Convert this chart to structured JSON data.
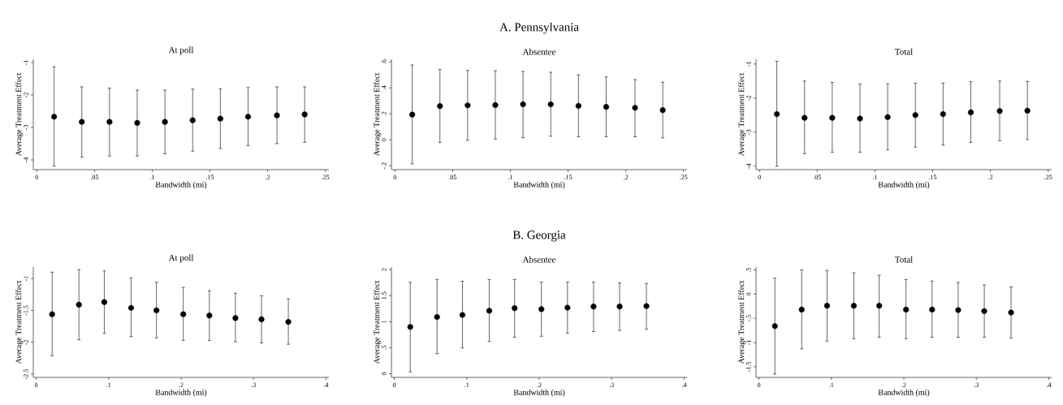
{
  "chart_data": [
    {
      "type": "scatter",
      "title": "At poll",
      "xlabel": "Bandwidth (mi)",
      "ylabel": "Average Treatment Effect",
      "color": "#000000",
      "marker": "circle",
      "x": [
        0.015,
        0.039,
        0.063,
        0.087,
        0.111,
        0.135,
        0.159,
        0.183,
        0.208,
        0.232
      ],
      "values": [
        -2.67,
        -2.83,
        -2.83,
        -2.86,
        -2.83,
        -2.78,
        -2.73,
        -2.67,
        -2.63,
        -2.6
      ],
      "errors": [
        [
          -4.19,
          -1.13
        ],
        [
          -3.92,
          -1.75
        ],
        [
          -3.88,
          -1.79
        ],
        [
          -3.88,
          -1.85
        ],
        [
          -3.81,
          -1.85
        ],
        [
          -3.73,
          -1.82
        ],
        [
          -3.65,
          -1.81
        ],
        [
          -3.56,
          -1.77
        ],
        [
          -3.5,
          -1.75
        ],
        [
          -3.46,
          -1.75
        ]
      ],
      "xlim": [
        -0.003,
        0.253
      ],
      "xticks": [
        0,
        {
          "value": 0.05,
          "label": ".05"
        },
        {
          "value": 0.1,
          "label": ".1"
        },
        {
          "value": 0.15,
          "label": ".15"
        },
        {
          "value": 0.2,
          "label": ".2"
        },
        {
          "value": 0.25,
          "label": ".25"
        }
      ],
      "ylim": [
        -4.3,
        -0.9
      ],
      "yticks": [
        -4,
        -3,
        -2,
        -1
      ]
    },
    {
      "type": "scatter",
      "title": "Absentee",
      "xlabel": "Bandwidth (mi)",
      "ylabel": "Average Treatment Effect",
      "annotations": [
        "A. Pennsylvania"
      ],
      "color": "#000000",
      "marker": "circle",
      "x": [
        0.015,
        0.039,
        0.063,
        0.087,
        0.111,
        0.135,
        0.159,
        0.183,
        0.208,
        0.232
      ],
      "values": [
        0.194,
        0.259,
        0.265,
        0.267,
        0.273,
        0.273,
        0.261,
        0.253,
        0.246,
        0.228
      ],
      "errors": [
        [
          -0.186,
          0.576
        ],
        [
          -0.021,
          0.541
        ],
        [
          -0.004,
          0.534
        ],
        [
          0.006,
          0.532
        ],
        [
          0.017,
          0.526
        ],
        [
          0.027,
          0.52
        ],
        [
          0.023,
          0.499
        ],
        [
          0.023,
          0.484
        ],
        [
          0.023,
          0.463
        ],
        [
          0.015,
          0.443
        ]
      ],
      "xlim": [
        -0.003,
        0.253
      ],
      "xticks": [
        0,
        {
          "value": 0.05,
          "label": ".05"
        },
        {
          "value": 0.1,
          "label": ".1"
        },
        {
          "value": 0.15,
          "label": ".15"
        },
        {
          "value": 0.2,
          "label": ".2"
        },
        {
          "value": 0.25,
          "label": ".25"
        }
      ],
      "ylim": [
        -0.23,
        0.62
      ],
      "yticks": [
        {
          "value": -0.2,
          "label": "-.2"
        },
        0,
        {
          "value": 0.2,
          "label": ".2"
        },
        {
          "value": 0.4,
          "label": ".4"
        },
        {
          "value": 0.6,
          "label": ".6"
        }
      ]
    },
    {
      "type": "scatter",
      "title": "Total",
      "xlabel": "Bandwidth (mi)",
      "ylabel": "Average Treatment Effect",
      "color": "#000000",
      "marker": "circle",
      "x": [
        0.015,
        0.039,
        0.063,
        0.087,
        0.111,
        0.135,
        0.159,
        0.183,
        0.208,
        0.232
      ],
      "values": [
        -2.47,
        -2.58,
        -2.58,
        -2.6,
        -2.56,
        -2.5,
        -2.47,
        -2.42,
        -2.38,
        -2.37
      ],
      "errors": [
        [
          -4.0,
          -0.92
        ],
        [
          -3.63,
          -1.5
        ],
        [
          -3.59,
          -1.54
        ],
        [
          -3.59,
          -1.59
        ],
        [
          -3.52,
          -1.58
        ],
        [
          -3.44,
          -1.56
        ],
        [
          -3.38,
          -1.56
        ],
        [
          -3.3,
          -1.52
        ],
        [
          -3.25,
          -1.5
        ],
        [
          -3.22,
          -1.51
        ]
      ],
      "xlim": [
        -0.003,
        0.253
      ],
      "xticks": [
        0,
        {
          "value": 0.05,
          "label": ".05"
        },
        {
          "value": 0.1,
          "label": ".1"
        },
        {
          "value": 0.15,
          "label": ".15"
        },
        {
          "value": 0.2,
          "label": ".2"
        },
        {
          "value": 0.25,
          "label": ".25"
        }
      ],
      "ylim": [
        -4.1,
        -0.86
      ],
      "yticks": [
        -4,
        -3,
        -2,
        -1
      ]
    },
    {
      "type": "scatter",
      "title": "At poll",
      "xlabel": "Bandwidth (mi)",
      "ylabel": "Average Treatment Effect",
      "color": "#000000",
      "marker": "circle",
      "x": [
        0.022,
        0.059,
        0.094,
        0.131,
        0.166,
        0.203,
        0.239,
        0.275,
        0.311,
        0.348
      ],
      "values": [
        -1.56,
        -1.41,
        -1.37,
        -1.46,
        -1.5,
        -1.56,
        -1.58,
        -1.62,
        -1.64,
        -1.68
      ],
      "errors": [
        [
          -2.21,
          -0.9
        ],
        [
          -1.96,
          -0.86
        ],
        [
          -1.86,
          -0.88
        ],
        [
          -1.91,
          -0.99
        ],
        [
          -1.93,
          -1.06
        ],
        [
          -1.97,
          -1.14
        ],
        [
          -1.97,
          -1.19
        ],
        [
          -1.99,
          -1.23
        ],
        [
          -2.01,
          -1.27
        ],
        [
          -2.03,
          -1.32
        ]
      ],
      "xlim": [
        -0.004,
        0.404
      ],
      "xticks": [
        0,
        {
          "value": 0.1,
          "label": ".1"
        },
        {
          "value": 0.2,
          "label": ".2"
        },
        {
          "value": 0.3,
          "label": ".3"
        },
        {
          "value": 0.4,
          "label": ".4"
        }
      ],
      "ylim": [
        -2.55,
        -0.82
      ],
      "yticks": [
        -2.5,
        -2,
        -1.5,
        -1
      ]
    },
    {
      "type": "scatter",
      "title": "Absentee",
      "xlabel": "Bandwidth (mi)",
      "ylabel": "Average Treatment Effect",
      "annotations": [
        "B. Georgia"
      ],
      "color": "#000000",
      "marker": "circle",
      "x": [
        0.022,
        0.059,
        0.094,
        0.131,
        0.166,
        0.203,
        0.239,
        0.275,
        0.311,
        0.348
      ],
      "values": [
        0.9,
        1.09,
        1.13,
        1.21,
        1.26,
        1.24,
        1.27,
        1.29,
        1.29,
        1.3
      ],
      "errors": [
        [
          0.036,
          1.755
        ],
        [
          0.385,
          1.81
        ],
        [
          0.495,
          1.776
        ],
        [
          0.62,
          1.81
        ],
        [
          0.7,
          1.81
        ],
        [
          0.72,
          1.76
        ],
        [
          0.776,
          1.76
        ],
        [
          0.81,
          1.76
        ],
        [
          0.833,
          1.745
        ],
        [
          0.854,
          1.734
        ]
      ],
      "xlim": [
        -0.004,
        0.404
      ],
      "xticks": [
        0,
        {
          "value": 0.1,
          "label": ".1"
        },
        {
          "value": 0.2,
          "label": ".2"
        },
        {
          "value": 0.3,
          "label": ".3"
        },
        {
          "value": 0.4,
          "label": ".4"
        }
      ],
      "ylim": [
        -0.07,
        2.05
      ],
      "yticks": [
        0,
        {
          "value": 0.5,
          "label": ".5"
        },
        1,
        1.5,
        2
      ]
    },
    {
      "type": "scatter",
      "title": "Total",
      "xlabel": "Bandwidth (mi)",
      "ylabel": "Average Treatment Effect",
      "color": "#000000",
      "marker": "circle",
      "x": [
        0.022,
        0.059,
        0.094,
        0.131,
        0.166,
        0.203,
        0.239,
        0.275,
        0.311,
        0.348
      ],
      "values": [
        -0.66,
        -0.32,
        -0.24,
        -0.24,
        -0.24,
        -0.32,
        -0.32,
        -0.33,
        -0.35,
        -0.38
      ],
      "errors": [
        [
          -1.65,
          0.33
        ],
        [
          -1.13,
          0.5
        ],
        [
          -0.97,
          0.49
        ],
        [
          -0.92,
          0.44
        ],
        [
          -0.89,
          0.39
        ],
        [
          -0.92,
          0.3
        ],
        [
          -0.89,
          0.27
        ],
        [
          -0.89,
          0.24
        ],
        [
          -0.89,
          0.19
        ],
        [
          -0.91,
          0.15
        ]
      ],
      "xlim": [
        -0.004,
        0.404
      ],
      "xticks": [
        0,
        {
          "value": 0.1,
          "label": ".1"
        },
        {
          "value": 0.2,
          "label": ".2"
        },
        {
          "value": 0.3,
          "label": ".3"
        },
        {
          "value": 0.4,
          "label": ".4"
        }
      ],
      "ylim": [
        -1.72,
        0.56
      ],
      "yticks": [
        -1.5,
        -1,
        {
          "value": -0.5,
          "label": "-.5"
        },
        0,
        {
          "value": 0.5,
          "label": ".5"
        }
      ]
    }
  ]
}
